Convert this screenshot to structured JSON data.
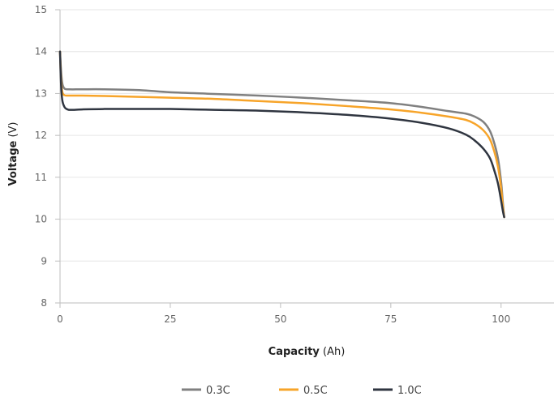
{
  "chart_data": {
    "type": "line",
    "xlabel_bold": "Capacity",
    "xlabel_unit": "(Ah)",
    "ylabel_bold": "Voltage",
    "ylabel_unit": "(V)",
    "xlim": [
      0,
      112
    ],
    "ylim": [
      8,
      15
    ],
    "xticks": [
      0,
      25,
      50,
      75,
      100
    ],
    "yticks": [
      8,
      9,
      10,
      11,
      12,
      13,
      14,
      15
    ],
    "grid": "horizontal",
    "legend_position": "bottom",
    "series": [
      {
        "name": "0.3C",
        "color": "#808080",
        "x": [
          0,
          0.2,
          0.5,
          1,
          2,
          5,
          10,
          18,
          25,
          35,
          45,
          55,
          65,
          75,
          82,
          88,
          92,
          94,
          96,
          97.5,
          98.5,
          99.3,
          100,
          100.4,
          100.7
        ],
        "y": [
          14.0,
          13.6,
          13.25,
          13.12,
          13.1,
          13.1,
          13.1,
          13.08,
          13.03,
          12.99,
          12.95,
          12.9,
          12.84,
          12.77,
          12.68,
          12.58,
          12.52,
          12.45,
          12.32,
          12.1,
          11.8,
          11.45,
          10.9,
          10.4,
          10.05
        ]
      },
      {
        "name": "0.5C",
        "color": "#f7a429",
        "x": [
          0,
          0.2,
          0.5,
          1,
          2,
          5,
          10,
          18,
          25,
          35,
          45,
          55,
          65,
          75,
          82,
          88,
          92,
          94,
          96,
          97.5,
          98.5,
          99.3,
          100,
          100.4,
          100.7
        ],
        "y": [
          14.0,
          13.4,
          13.05,
          12.96,
          12.95,
          12.95,
          12.94,
          12.92,
          12.9,
          12.87,
          12.82,
          12.77,
          12.7,
          12.62,
          12.54,
          12.45,
          12.37,
          12.28,
          12.12,
          11.9,
          11.6,
          11.25,
          10.75,
          10.3,
          10.05
        ]
      },
      {
        "name": "1.0C",
        "color": "#2f3540",
        "x": [
          0,
          0.2,
          0.5,
          1,
          1.5,
          2,
          3,
          5,
          10,
          18,
          25,
          35,
          45,
          55,
          65,
          75,
          82,
          88,
          92,
          94,
          96,
          97.5,
          98.5,
          99.3,
          100,
          100.4,
          100.7
        ],
        "y": [
          14.0,
          13.3,
          12.85,
          12.68,
          12.63,
          12.61,
          12.61,
          12.62,
          12.63,
          12.63,
          12.63,
          12.61,
          12.59,
          12.55,
          12.49,
          12.4,
          12.3,
          12.17,
          12.02,
          11.88,
          11.68,
          11.45,
          11.15,
          10.85,
          10.45,
          10.2,
          10.05
        ]
      }
    ]
  }
}
